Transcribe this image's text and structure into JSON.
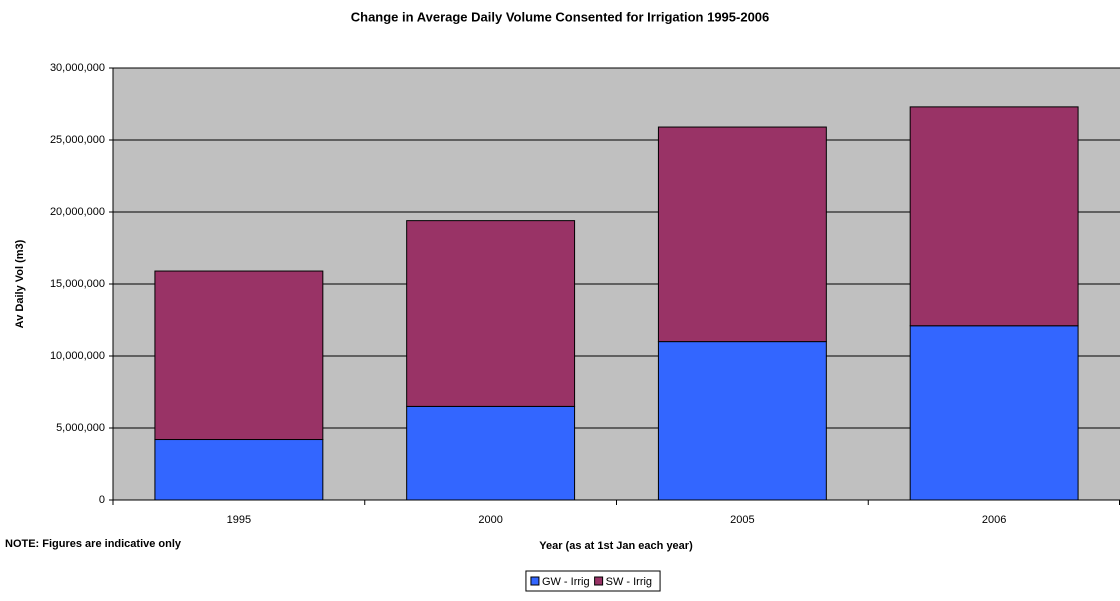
{
  "chart_data": {
    "type": "stacked-bar",
    "title": "Change in Average Daily Volume Consented for Irrigation 1995-2006",
    "x_label": "Year (as at 1st Jan each year)",
    "y_label": "Av Daily Vol (m3)",
    "annotation": "NOTE: Figures are indicative only",
    "categories": [
      "1995",
      "2000",
      "2005",
      "2006"
    ],
    "series": [
      {
        "name": "GW - Irrig",
        "color": "#3366ff",
        "values": [
          4200000,
          6500000,
          11000000,
          12100000
        ]
      },
      {
        "name": "SW - Irrig",
        "color": "#993366",
        "values": [
          11700000,
          12900000,
          14900000,
          15200000
        ]
      }
    ],
    "ylim": [
      0,
      30000000
    ],
    "yticks": [
      0,
      {
        "value": 5000000,
        "label": "5,000,000"
      },
      {
        "value": 10000000,
        "label": "10,000,000"
      },
      {
        "value": 15000000,
        "label": "15,000,000"
      },
      {
        "value": 20000000,
        "label": "20,000,000"
      },
      {
        "value": 25000000,
        "label": "25,000,000"
      },
      {
        "value": 30000000,
        "label": "30,000,000"
      }
    ],
    "grid": true,
    "legend": "bottom",
    "plot_background": "#c0c0c0"
  }
}
